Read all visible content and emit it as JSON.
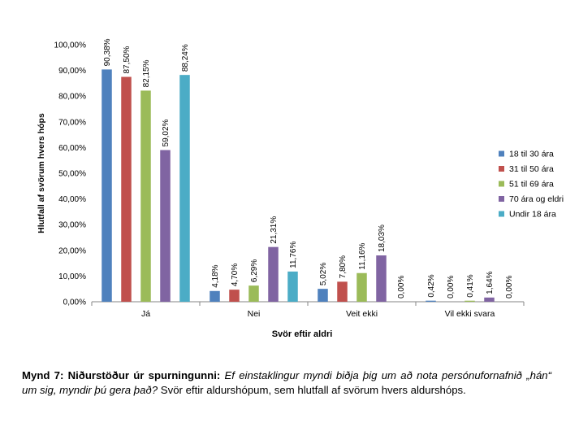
{
  "chart_data": {
    "type": "bar",
    "title": "",
    "xlabel": "Svör eftir aldri",
    "ylabel": "Hlutfall af svörum hvers hóps",
    "ylim": [
      0,
      100
    ],
    "yticks": [
      0,
      10,
      20,
      30,
      40,
      50,
      60,
      70,
      80,
      90,
      100
    ],
    "ytick_labels": [
      "0,00%",
      "10,00%",
      "20,00%",
      "30,00%",
      "40,00%",
      "50,00%",
      "60,00%",
      "70,00%",
      "80,00%",
      "90,00%",
      "100,00%"
    ],
    "grid": false,
    "legend_position": "right",
    "categories": [
      "Já",
      "Nei",
      "Veit ekki",
      "Vil ekki svara"
    ],
    "series": [
      {
        "name": "18 til 30 ára",
        "color": "#4f81bd",
        "values": [
          90.38,
          4.18,
          5.02,
          0.42
        ],
        "labels": [
          "90,38%",
          "4,18%",
          "5,02%",
          "0,42%"
        ]
      },
      {
        "name": "31 til 50 ára",
        "color": "#c0504d",
        "values": [
          87.5,
          4.7,
          7.8,
          0.0
        ],
        "labels": [
          "87,50%",
          "4,70%",
          "7,80%",
          "0,00%"
        ]
      },
      {
        "name": "51 til 69 ára",
        "color": "#9bbb59",
        "values": [
          82.15,
          6.29,
          11.16,
          0.41
        ],
        "labels": [
          "82,15%",
          "6,29%",
          "11,16%",
          "0,41%"
        ]
      },
      {
        "name": "70 ára og eldri",
        "color": "#8064a2",
        "values": [
          59.02,
          21.31,
          18.03,
          1.64
        ],
        "labels": [
          "59,02%",
          "21,31%",
          "18,03%",
          "1,64%"
        ]
      },
      {
        "name": "Undir 18 ára",
        "color": "#4bacc6",
        "values": [
          88.24,
          11.76,
          0.0,
          0.0
        ],
        "labels": [
          "88,24%",
          "11,76%",
          "0,00%",
          "0,00%"
        ]
      }
    ]
  },
  "caption": {
    "label": "Mynd 7: Niðurstöður úr spurningunni: ",
    "question": "Ef einstaklingur myndi biðja þig um að nota persónufornafnið „hán“ um sig, myndir þú gera það?",
    "rest": " Svör eftir aldurshópum, sem hlutfall af svörum hvers aldurshóps."
  }
}
